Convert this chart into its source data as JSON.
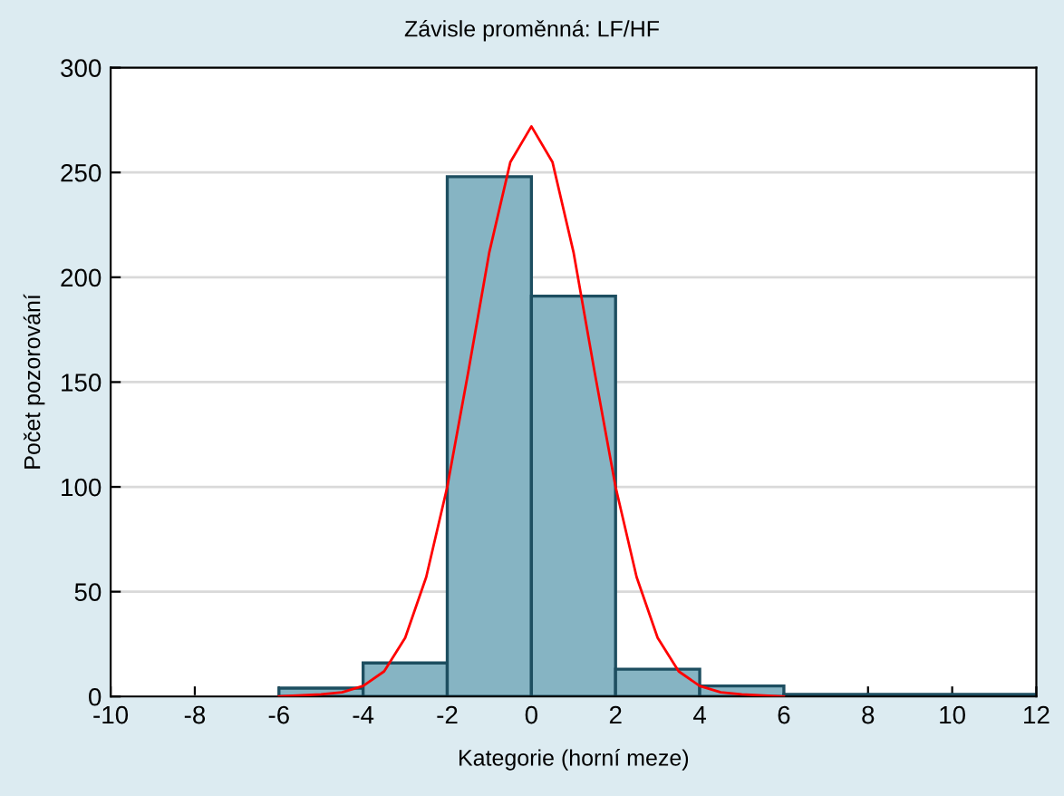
{
  "chart_data": {
    "type": "histogram",
    "title": "Závisle proměnná: LF/HF",
    "xlabel": "Kategorie (horní meze)",
    "ylabel": "Počet pozorování",
    "bins": [
      -10,
      -8,
      -6,
      -4,
      -2,
      0,
      2,
      4,
      6,
      8,
      10,
      12
    ],
    "values": [
      0,
      0,
      4,
      16,
      248,
      191,
      13,
      5,
      1,
      1,
      1
    ],
    "color": "#86b4c3",
    "series": [
      {
        "type": "line",
        "color": "#ff0000",
        "x": [
          -6,
          -5,
          -4.5,
          -4,
          -3.5,
          -3,
          -2.5,
          -2,
          -1.5,
          -1,
          -0.5,
          0,
          0.5,
          1,
          1.5,
          2,
          2.5,
          3,
          3.5,
          4,
          4.5,
          5,
          6
        ],
        "values": [
          0,
          1,
          2,
          5,
          12,
          28,
          57,
          100,
          155,
          212,
          255,
          272,
          255,
          212,
          155,
          100,
          57,
          28,
          12,
          5,
          2,
          1,
          0
        ]
      }
    ],
    "xlim": [
      -10,
      12
    ],
    "xticks": [
      -10,
      -8,
      -6,
      -4,
      -2,
      0,
      2,
      4,
      6,
      8,
      10,
      12
    ],
    "ylim": [
      0,
      300
    ],
    "yticks": [
      0,
      50,
      100,
      150,
      200,
      250,
      300
    ],
    "grid": "y",
    "legend": false
  }
}
